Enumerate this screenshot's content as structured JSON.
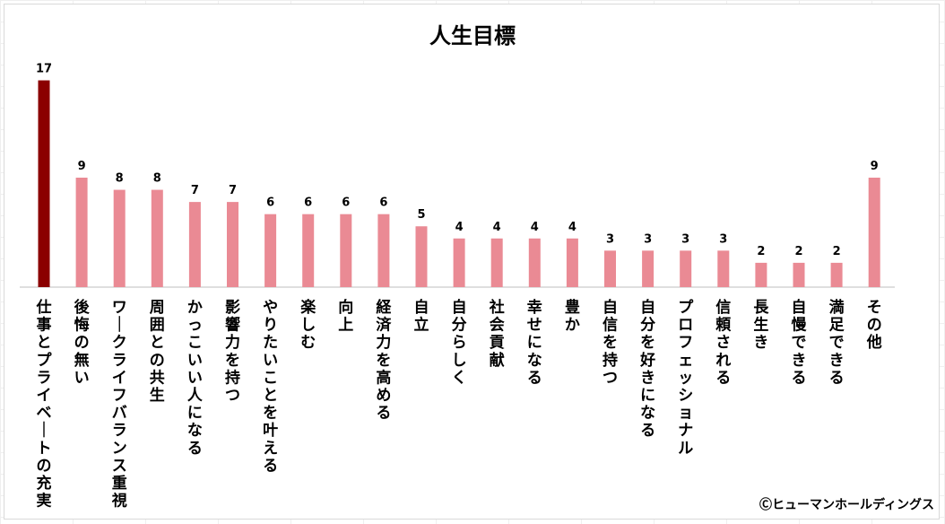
{
  "chart_data": {
    "type": "bar",
    "title": "人生目標",
    "categories": [
      "仕事とプライベートの充実",
      "後悔の無い",
      "ワークライフバランス重視",
      "周囲との共生",
      "かっこいい人になる",
      "影響力を持つ",
      "やりたいことを叶える",
      "楽しむ",
      "向上",
      "経済力を高める",
      "自立",
      "自分らしく",
      "社会貢献",
      "幸せになる",
      "豊か",
      "自信を持つ",
      "自分を好きになる",
      "プロフェッショナル",
      "信頼される",
      "長生き",
      "自慢できる",
      "満足できる",
      "その他"
    ],
    "values": [
      17,
      9,
      8,
      8,
      7,
      7,
      6,
      6,
      6,
      6,
      5,
      4,
      4,
      4,
      4,
      3,
      3,
      3,
      3,
      2,
      2,
      2,
      9
    ],
    "ylim": [
      0,
      18
    ],
    "grid": true,
    "data_labels": true,
    "colors": {
      "highlight": "#8b0000",
      "default": "#ea8a94"
    }
  },
  "copyright": "Ⓒヒューマンホールディングス"
}
